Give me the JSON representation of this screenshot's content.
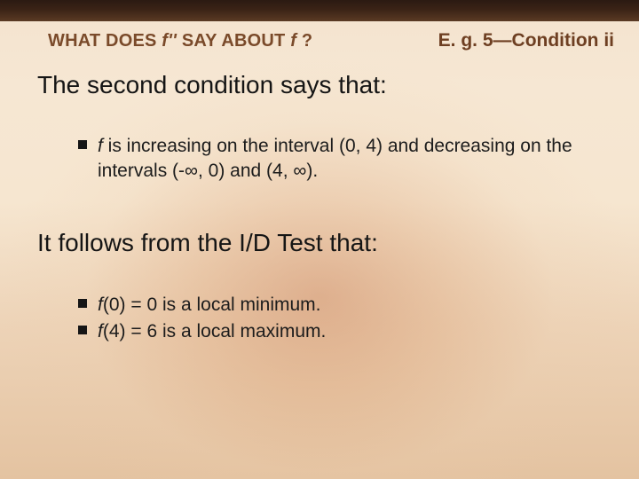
{
  "header": {
    "left_pre": "WHAT DOES ",
    "left_fi": "f''",
    "left_mid": " SAY ABOUT ",
    "left_fi2": "f ",
    "left_post": "?",
    "right": "E. g. 5—Condition ii"
  },
  "lead1": "The second condition says that:",
  "bullet1": {
    "fi": "f",
    "rest": " is increasing on the interval (0, 4) and decreasing on the intervals (-∞, 0) and (4, ∞)."
  },
  "lead2": "It follows from the I/D Test that:",
  "bullet2a": {
    "fi": "f",
    "rest": "(0) = 0 is a local minimum."
  },
  "bullet2b": {
    "fi": "f",
    "rest": "(4) = 6 is a local maximum."
  },
  "colors": {
    "header_text": "#7a4a2a",
    "body_text": "#151515",
    "bullet_marker": "#151515",
    "topbar_dark": "#2b1a12",
    "bg_light": "#f6e7d3",
    "bg_warm": "#e4c3a1"
  },
  "fonts": {
    "header_size_pt": 15,
    "lead_size_pt": 21,
    "bullet_size_pt": 16
  }
}
